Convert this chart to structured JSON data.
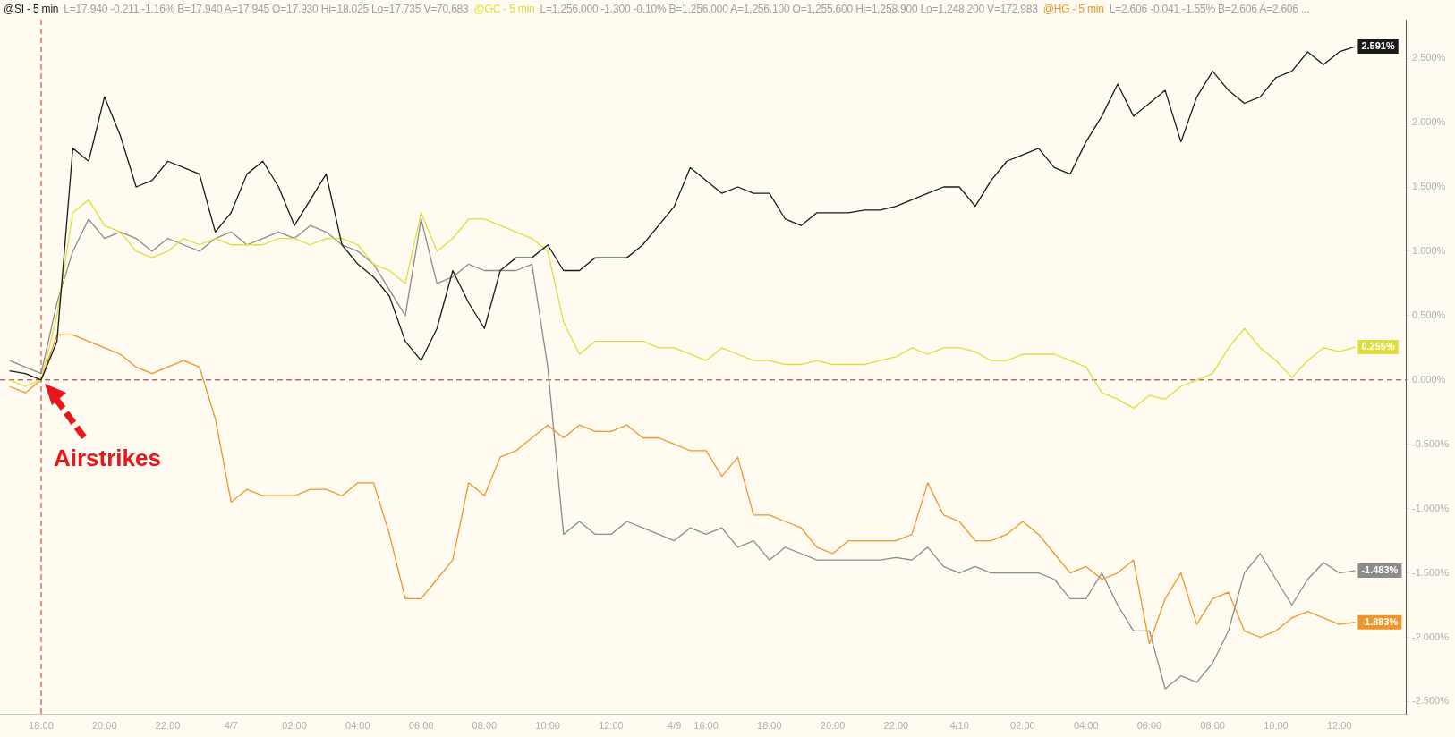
{
  "chart_data": {
    "type": "line",
    "categories": [
      null,
      null,
      "18:00",
      null,
      null,
      null,
      "20:00",
      null,
      null,
      null,
      "22:00",
      null,
      null,
      null,
      "4/7",
      null,
      null,
      null,
      "02:00",
      null,
      null,
      null,
      "04:00",
      null,
      null,
      null,
      "06:00",
      null,
      null,
      null,
      "08:00",
      null,
      null,
      null,
      "10:00",
      null,
      null,
      null,
      "12:00",
      null,
      null,
      null,
      "4/9",
      null,
      "16:00",
      null,
      null,
      null,
      "18:00",
      null,
      null,
      null,
      "20:00",
      null,
      null,
      null,
      "22:00",
      null,
      null,
      null,
      "4/10",
      null,
      null,
      null,
      "02:00",
      null,
      null,
      null,
      "04:00",
      null,
      null,
      null,
      "06:00",
      null,
      null,
      null,
      "08:00",
      null,
      null,
      null,
      "10:00",
      null,
      null,
      null,
      "12:00",
      null
    ],
    "series": [
      {
        "name": "@SI - 5 min",
        "color": "#1a1a1a",
        "values": [
          0.07,
          0.05,
          0.0,
          0.3,
          1.8,
          1.7,
          2.2,
          1.9,
          1.5,
          1.55,
          1.7,
          1.65,
          1.6,
          1.15,
          1.3,
          1.6,
          1.7,
          1.5,
          1.2,
          1.4,
          1.6,
          1.05,
          0.9,
          0.8,
          0.65,
          0.3,
          0.15,
          0.4,
          0.85,
          0.6,
          0.4,
          0.85,
          0.95,
          0.95,
          1.05,
          0.85,
          0.85,
          0.95,
          0.95,
          0.95,
          1.05,
          1.2,
          1.35,
          1.65,
          1.55,
          1.45,
          1.5,
          1.45,
          1.45,
          1.25,
          1.2,
          1.3,
          1.3,
          1.3,
          1.32,
          1.32,
          1.35,
          1.4,
          1.45,
          1.5,
          1.5,
          1.35,
          1.55,
          1.7,
          1.75,
          1.8,
          1.65,
          1.6,
          1.85,
          2.05,
          2.3,
          2.05,
          2.15,
          2.25,
          1.85,
          2.2,
          2.4,
          2.25,
          2.15,
          2.2,
          2.35,
          2.4,
          2.55,
          2.45,
          2.55,
          2.591
        ],
        "value_labels": [
          null,
          null,
          null,
          null,
          null,
          null,
          null,
          null,
          null,
          null,
          null,
          null,
          null,
          null,
          null,
          null,
          null,
          null,
          null,
          null,
          null,
          null,
          null,
          null,
          null,
          null,
          null,
          null,
          null,
          null,
          null,
          null,
          null,
          null,
          null,
          null,
          null,
          null,
          null,
          null,
          null,
          null,
          null,
          null,
          null,
          null,
          null,
          null,
          null,
          null,
          null,
          null,
          null,
          null,
          null,
          null,
          null,
          null,
          null,
          null,
          null,
          null,
          null,
          null,
          null,
          null,
          null,
          null,
          null,
          null,
          null,
          null,
          null,
          null,
          null,
          null,
          null,
          null,
          null,
          null,
          null,
          null,
          null,
          null,
          null,
          "2.591%"
        ]
      },
      {
        "name": "@GC - 5 min",
        "color": "#dede3a",
        "values": [
          0.0,
          -0.05,
          0.0,
          0.5,
          1.3,
          1.4,
          1.2,
          1.15,
          1.0,
          0.95,
          1.0,
          1.1,
          1.05,
          1.1,
          1.05,
          1.05,
          1.05,
          1.1,
          1.1,
          1.05,
          1.1,
          1.1,
          1.05,
          0.9,
          0.85,
          0.75,
          1.3,
          1.0,
          1.1,
          1.25,
          1.25,
          1.2,
          1.15,
          1.1,
          1.0,
          0.45,
          0.2,
          0.3,
          0.3,
          0.3,
          0.3,
          0.25,
          0.25,
          0.2,
          0.15,
          0.25,
          0.2,
          0.15,
          0.15,
          0.12,
          0.12,
          0.15,
          0.12,
          0.12,
          0.12,
          0.15,
          0.18,
          0.25,
          0.2,
          0.25,
          0.25,
          0.22,
          0.15,
          0.15,
          0.2,
          0.2,
          0.2,
          0.15,
          0.1,
          -0.1,
          -0.15,
          -0.22,
          -0.12,
          -0.15,
          -0.05,
          0.0,
          0.05,
          0.25,
          0.4,
          0.25,
          0.15,
          0.02,
          0.15,
          0.25,
          0.22,
          0.255
        ],
        "value_labels": [
          null,
          null,
          null,
          null,
          null,
          null,
          null,
          null,
          null,
          null,
          null,
          null,
          null,
          null,
          null,
          null,
          null,
          null,
          null,
          null,
          null,
          null,
          null,
          null,
          null,
          null,
          null,
          null,
          null,
          null,
          null,
          null,
          null,
          null,
          null,
          null,
          null,
          null,
          null,
          null,
          null,
          null,
          null,
          null,
          null,
          null,
          null,
          null,
          null,
          null,
          null,
          null,
          null,
          null,
          null,
          null,
          null,
          null,
          null,
          null,
          null,
          null,
          null,
          null,
          null,
          null,
          null,
          null,
          null,
          null,
          null,
          null,
          null,
          null,
          null,
          null,
          null,
          null,
          null,
          null,
          null,
          null,
          null,
          null,
          null,
          "0.255%"
        ]
      },
      {
        "name": "@HG - 5 min",
        "color": "#f0952a",
        "values": [
          -0.05,
          -0.1,
          0.0,
          0.35,
          0.35,
          0.3,
          0.25,
          0.2,
          0.1,
          0.05,
          0.1,
          0.15,
          0.1,
          -0.3,
          -0.95,
          -0.85,
          -0.9,
          -0.9,
          -0.9,
          -0.85,
          -0.85,
          -0.9,
          -0.8,
          -0.8,
          -1.2,
          -1.7,
          -1.7,
          -1.55,
          -1.4,
          -0.8,
          -0.9,
          -0.6,
          -0.55,
          -0.45,
          -0.35,
          -0.45,
          -0.35,
          -0.4,
          -0.4,
          -0.35,
          -0.45,
          -0.45,
          -0.5,
          -0.55,
          -0.55,
          -0.75,
          -0.6,
          -1.05,
          -1.05,
          -1.1,
          -1.15,
          -1.3,
          -1.35,
          -1.25,
          -1.25,
          -1.25,
          -1.25,
          -1.2,
          -0.8,
          -1.05,
          -1.1,
          -1.25,
          -1.25,
          -1.2,
          -1.1,
          -1.2,
          -1.35,
          -1.5,
          -1.45,
          -1.55,
          -1.5,
          -1.4,
          -2.05,
          -1.7,
          -1.5,
          -1.9,
          -1.7,
          -1.65,
          -1.95,
          -2.0,
          -1.95,
          -1.85,
          -1.8,
          -1.85,
          -1.9,
          -1.883
        ],
        "value_labels": [
          null,
          null,
          null,
          null,
          null,
          null,
          null,
          null,
          null,
          null,
          null,
          null,
          null,
          null,
          null,
          null,
          null,
          null,
          null,
          null,
          null,
          null,
          null,
          null,
          null,
          null,
          null,
          null,
          null,
          null,
          null,
          null,
          null,
          null,
          null,
          null,
          null,
          null,
          null,
          null,
          null,
          null,
          null,
          null,
          null,
          null,
          null,
          null,
          null,
          null,
          null,
          null,
          null,
          null,
          null,
          null,
          null,
          null,
          null,
          null,
          null,
          null,
          null,
          null,
          null,
          null,
          null,
          null,
          null,
          null,
          null,
          null,
          null,
          null,
          null,
          null,
          null,
          null,
          null,
          null,
          null,
          null,
          null,
          null,
          null,
          "-1.883%"
        ]
      },
      {
        "color": "#8c8c8c",
        "values": [
          0.15,
          0.1,
          0.05,
          0.6,
          1.0,
          1.25,
          1.1,
          1.15,
          1.1,
          1.0,
          1.1,
          1.05,
          1.0,
          1.1,
          1.15,
          1.05,
          1.1,
          1.15,
          1.1,
          1.2,
          1.15,
          1.05,
          1.0,
          0.9,
          0.7,
          0.5,
          1.25,
          0.75,
          0.8,
          0.9,
          0.85,
          0.85,
          0.85,
          0.9,
          0.1,
          -1.2,
          -1.1,
          -1.2,
          -1.2,
          -1.1,
          -1.15,
          -1.2,
          -1.25,
          -1.15,
          -1.2,
          -1.15,
          -1.3,
          -1.25,
          -1.4,
          -1.3,
          -1.35,
          -1.4,
          -1.4,
          -1.4,
          -1.4,
          -1.4,
          -1.38,
          -1.4,
          -1.3,
          -1.45,
          -1.5,
          -1.45,
          -1.5,
          -1.5,
          -1.5,
          -1.5,
          -1.55,
          -1.7,
          -1.7,
          -1.5,
          -1.75,
          -1.95,
          -1.95,
          -2.4,
          -2.3,
          -2.35,
          -2.2,
          -1.95,
          -1.5,
          -1.35,
          -1.55,
          -1.75,
          -1.55,
          -1.42,
          -1.5,
          -1.483
        ],
        "value_labels": [
          null,
          null,
          null,
          null,
          null,
          null,
          null,
          null,
          null,
          null,
          null,
          null,
          null,
          null,
          null,
          null,
          null,
          null,
          null,
          null,
          null,
          null,
          null,
          null,
          null,
          null,
          null,
          null,
          null,
          null,
          null,
          null,
          null,
          null,
          null,
          null,
          null,
          null,
          null,
          null,
          null,
          null,
          null,
          null,
          null,
          null,
          null,
          null,
          null,
          null,
          null,
          null,
          null,
          null,
          null,
          null,
          null,
          null,
          null,
          null,
          null,
          null,
          null,
          null,
          null,
          null,
          null,
          null,
          null,
          null,
          null,
          null,
          null,
          null,
          null,
          null,
          null,
          null,
          null,
          null,
          null,
          null,
          null,
          null,
          null,
          "-1.483%"
        ]
      }
    ],
    "ylim": [
      -2.6,
      2.8
    ],
    "yticks": [
      {
        "value": -2.5,
        "label": "-2.500%"
      },
      {
        "value": -2,
        "label": "-2.000%"
      },
      {
        "value": -1.5,
        "label": "-1.500%"
      },
      {
        "value": -1,
        "label": "-1.000%"
      },
      {
        "value": -0.5,
        "label": "-0.500%"
      },
      {
        "value": 0,
        "label": "0.000%"
      },
      {
        "value": 0.5,
        "label": "0.500%"
      },
      {
        "value": 1,
        "label": "1.000%"
      },
      {
        "value": 1.5,
        "label": "1.500%"
      },
      {
        "value": 2,
        "label": "2.000%"
      },
      {
        "value": 2.5,
        "label": "2.500%"
      }
    ],
    "ref_lines": [
      {
        "axis": "y",
        "value": 0,
        "color": "#a0282a",
        "line_style": "dashed"
      },
      {
        "axis": "x",
        "value": "18:00",
        "color": "#d03030",
        "line_style": "dashed"
      }
    ],
    "annotations": [
      {
        "text": "Airstrikes",
        "x": "18:00",
        "y": 0
      },
      "L=17.940 -0.211 -1.16% B=17.940 A=17.945 O=17.930 Hi=18.025 Lo=17.735 V=70,683",
      "L=1,256.000 -1.300 -0.10% B=1,256.000 A=1,256.100 O=1,255.600 Hi=1,258.900 Lo=1,248.200 V=172,983",
      "L=2.606 -0.041 -1.55% B=2.606 A=2.606 ..."
    ],
    "legend": "top left",
    "marker": "none",
    "line_style": "solid"
  }
}
